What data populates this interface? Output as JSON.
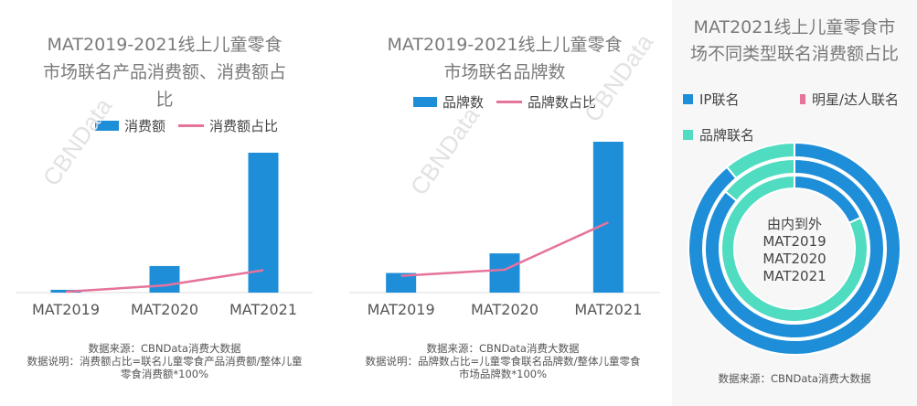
{
  "watermark": "CBNData",
  "chart_data": [
    {
      "type": "bar",
      "title_lines": [
        "MAT2019-2021线上儿童零食",
        "市场联名产品消费额、消费额占",
        "比"
      ],
      "categories": [
        "MAT2019",
        "MAT2020",
        "MAT2021"
      ],
      "series": [
        {
          "name": "消费额",
          "type": "bar",
          "values": [
            0.2,
            1.9,
            10.0
          ],
          "color": "#1f8ed8"
        },
        {
          "name": "消费额占比",
          "type": "line",
          "values": [
            0.05,
            0.4,
            1.25
          ],
          "color": "#e5739c"
        }
      ],
      "ylim": [
        0,
        10.8
      ],
      "grid": false,
      "legend_position": "top",
      "footnote": [
        "数据来源：CBNData消费大数据",
        "数据说明：消费额占比=联名儿童零食产品消费额/整体儿童",
        "零食消费额*100%"
      ]
    },
    {
      "type": "bar",
      "title_lines": [
        "MAT2019-2021线上儿童零食",
        "市场联名品牌数"
      ],
      "categories": [
        "MAT2019",
        "MAT2020",
        "MAT2021"
      ],
      "series": [
        {
          "name": "品牌数",
          "type": "bar",
          "values": [
            1.3,
            2.6,
            10.0
          ],
          "color": "#1f8ed8"
        },
        {
          "name": "品牌数占比",
          "type": "line",
          "values": [
            1.1,
            1.5,
            4.6
          ],
          "color": "#e5739c"
        }
      ],
      "ylim": [
        0,
        10.8
      ],
      "grid": false,
      "legend_position": "top",
      "footnote": [
        "数据来源：CBNData消费大数据",
        "数据说明：品牌数占比=儿童零食联名品牌数/整体儿童零食",
        "市场品牌数*100%"
      ]
    },
    {
      "type": "pie",
      "title_lines": [
        "MAT2021线上儿童零食市",
        "场不同类型联名消费额占比"
      ],
      "categories": [
        "IP联名",
        "明星/达人联名",
        "品牌联名"
      ],
      "colors": [
        "#1f8ed8",
        "#e5739c",
        "#4fdcc0"
      ],
      "rings": [
        {
          "name": "MAT2019",
          "values": [
            18,
            0,
            82
          ]
        },
        {
          "name": "MAT2020",
          "values": [
            86,
            0,
            14
          ]
        },
        {
          "name": "MAT2021",
          "values": [
            89,
            0,
            11
          ]
        }
      ],
      "center_lines": [
        "由内到外",
        "MAT2019",
        "MAT2020",
        "MAT2021"
      ],
      "legend_position": "top",
      "footnote": [
        "数据来源：CBNData消费大数据"
      ]
    }
  ]
}
